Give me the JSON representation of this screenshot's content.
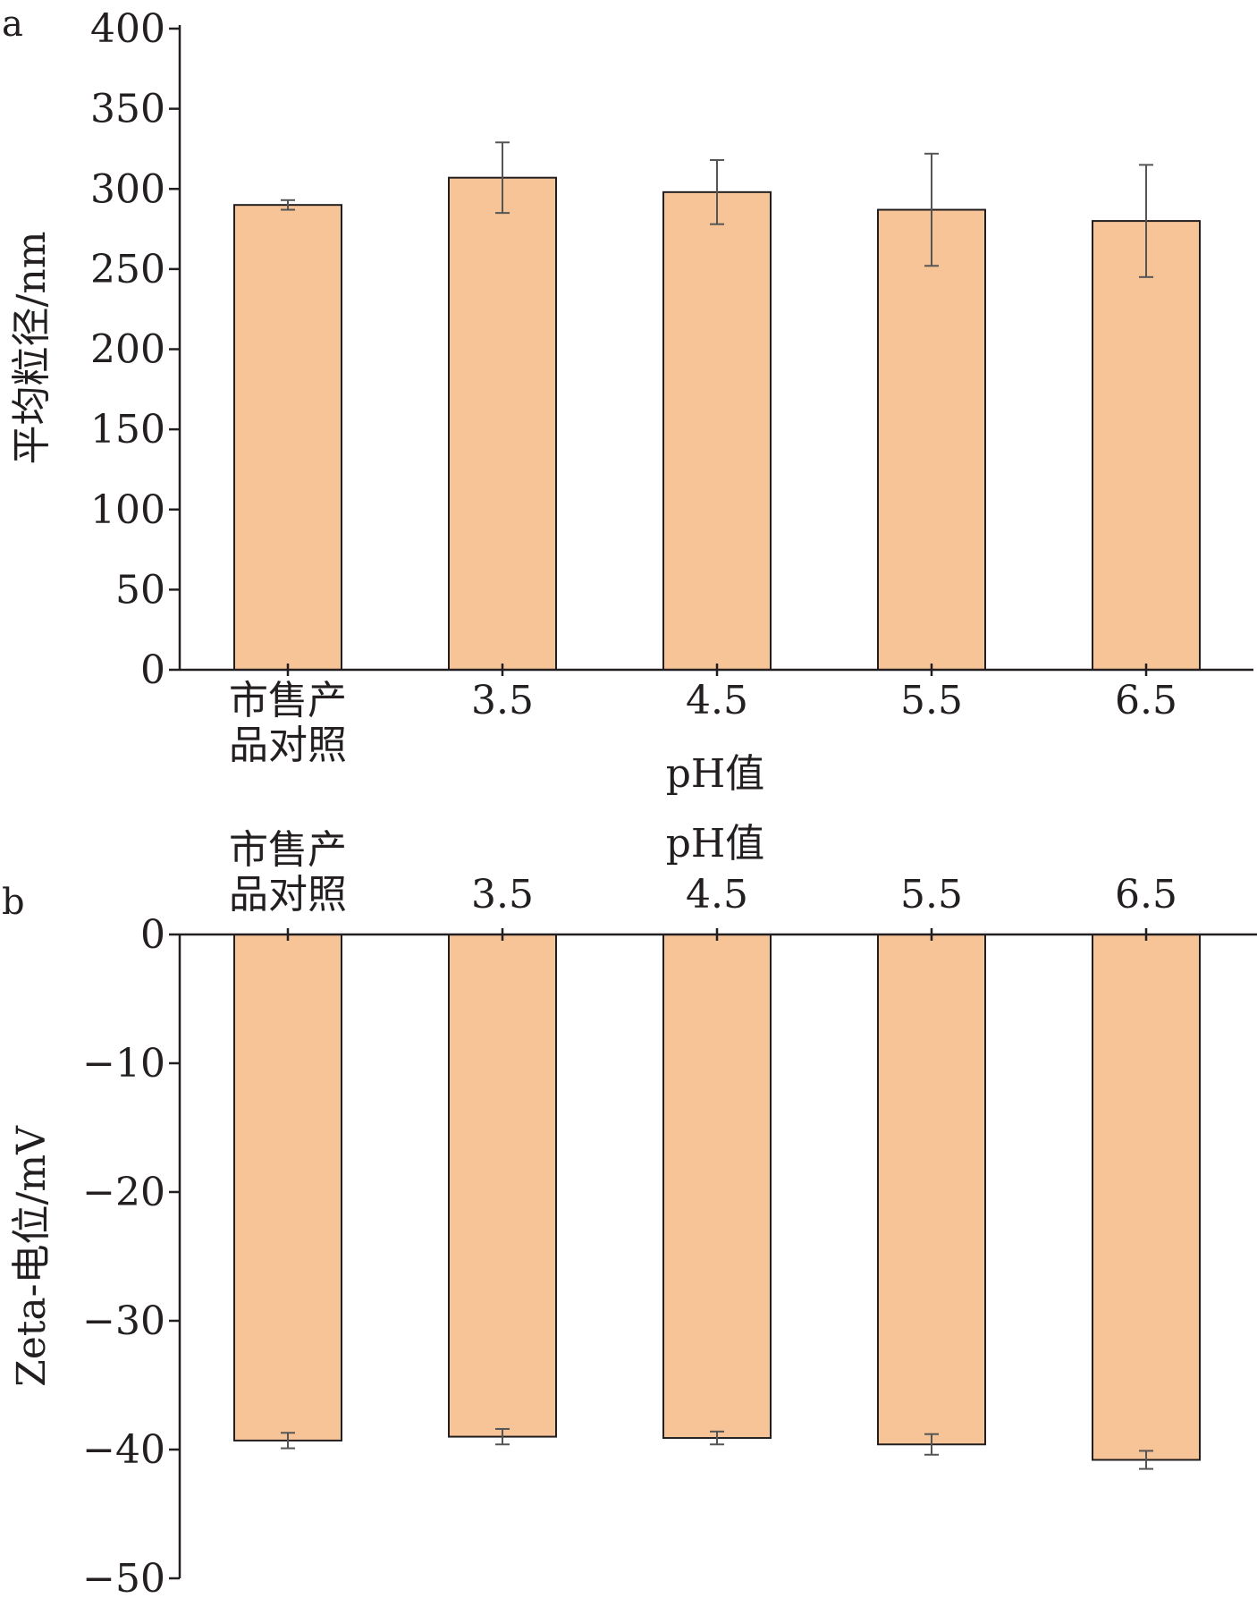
{
  "chart_data": [
    {
      "panel": "a",
      "type": "bar",
      "ylabel": "平均粒径/nm",
      "xlabel": "pH值",
      "categories": [
        [
          "市售产",
          "品对照"
        ],
        [
          "3.5"
        ],
        [
          "4.5"
        ],
        [
          "5.5"
        ],
        [
          "6.5"
        ]
      ],
      "values": [
        290,
        307,
        298,
        287,
        280
      ],
      "errors": [
        3,
        22,
        20,
        35,
        35
      ],
      "ylim": [
        0,
        400
      ],
      "yticks": [
        "0",
        "50",
        "100",
        "150",
        "200",
        "250",
        "300",
        "350",
        "400"
      ],
      "ytick_values": [
        0,
        50,
        100,
        150,
        200,
        250,
        300,
        350,
        400
      ],
      "bar_color": "#f6c497",
      "grid": false
    },
    {
      "panel": "b",
      "type": "bar",
      "ylabel": "Zeta-电位/mV",
      "xlabel": "pH值",
      "categories": [
        [
          "市售产",
          "品对照"
        ],
        [
          "3.5"
        ],
        [
          "4.5"
        ],
        [
          "5.5"
        ],
        [
          "6.5"
        ]
      ],
      "values": [
        -39.3,
        -39.0,
        -39.1,
        -39.6,
        -40.8
      ],
      "errors": [
        0.6,
        0.6,
        0.5,
        0.8,
        0.7
      ],
      "ylim": [
        -50,
        0
      ],
      "yticks": [
        "0",
        "−10",
        "−20",
        "−30",
        "−40",
        "−50"
      ],
      "ytick_values": [
        0,
        -10,
        -20,
        -30,
        -40,
        -50
      ],
      "bar_color": "#f6c497",
      "grid": false
    }
  ]
}
